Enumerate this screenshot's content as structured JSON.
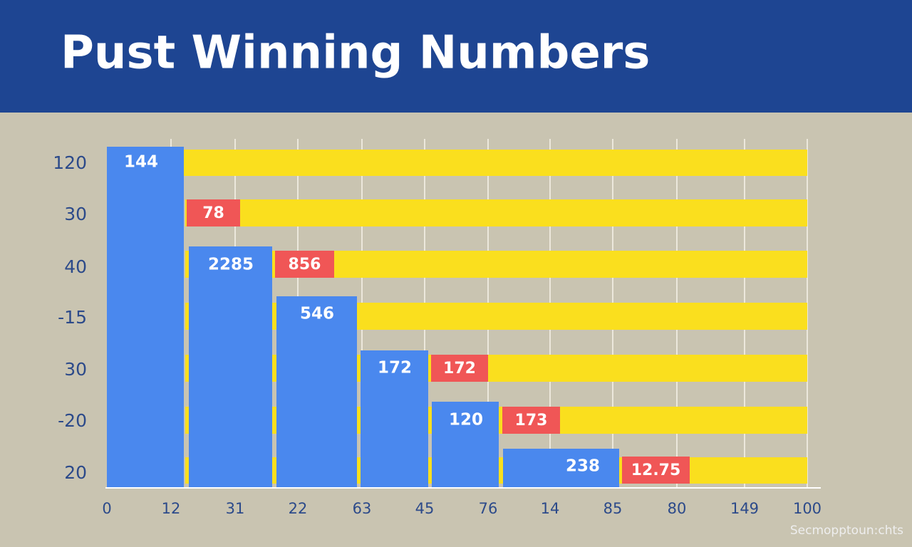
{
  "header": {
    "title": "Pust Winning Numbers"
  },
  "y_labels": [
    120,
    30,
    40,
    -15,
    30,
    -20,
    20
  ],
  "x_labels": [
    0,
    12,
    31,
    22,
    63,
    45,
    76,
    14,
    85,
    80,
    149,
    100
  ],
  "blue_labels": [
    144,
    2285,
    546,
    172,
    120,
    238
  ],
  "red_labels": [
    78,
    856,
    172,
    173,
    12.75
  ],
  "watermark": "Secmopptoun:chts"
}
